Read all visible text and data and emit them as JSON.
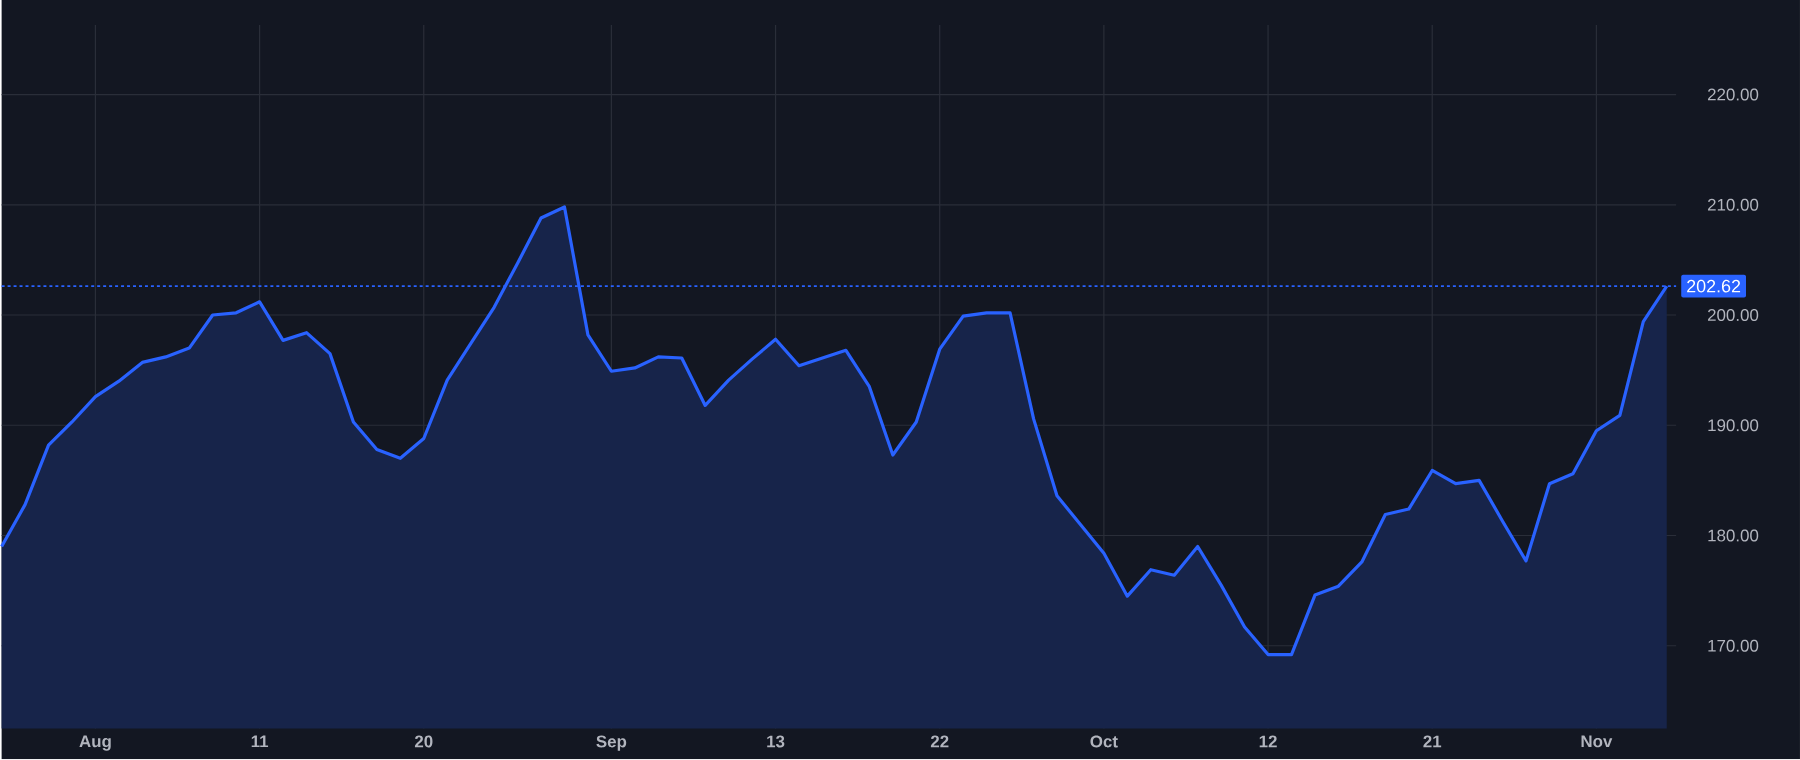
{
  "chart_data": {
    "type": "area",
    "categories": [
      null,
      null,
      null,
      null,
      "Aug",
      null,
      null,
      null,
      null,
      null,
      null,
      "11",
      null,
      null,
      null,
      null,
      null,
      null,
      "20",
      null,
      null,
      null,
      null,
      null,
      null,
      null,
      "Sep",
      null,
      null,
      null,
      null,
      null,
      null,
      "13",
      null,
      null,
      null,
      null,
      null,
      null,
      "22",
      null,
      null,
      null,
      null,
      null,
      null,
      "Oct",
      null,
      null,
      null,
      null,
      null,
      null,
      "12",
      null,
      null,
      null,
      null,
      null,
      null,
      "21",
      null,
      null,
      null,
      null,
      null,
      null,
      "Nov",
      null,
      null,
      null
    ],
    "series": [
      {
        "color": "#2962ff",
        "values": [
          179.0,
          182.8,
          188.2,
          190.3,
          192.6,
          194.0,
          195.7,
          196.2,
          197.0,
          200.0,
          200.2,
          201.2,
          197.7,
          198.4,
          196.5,
          190.3,
          187.8,
          187.0,
          188.8,
          194.1,
          197.4,
          200.7,
          204.7,
          208.8,
          209.8,
          198.2,
          194.9,
          195.2,
          196.2,
          196.1,
          191.8,
          194.1,
          196.0,
          197.8,
          195.4,
          196.1,
          196.8,
          193.5,
          187.3,
          190.3,
          196.9,
          199.9,
          200.2,
          200.2,
          190.6,
          183.6,
          181.0,
          178.4,
          174.5,
          176.9,
          176.4,
          179.0,
          175.5,
          171.7,
          169.2,
          169.2,
          174.6,
          175.4,
          177.6,
          181.9,
          182.4,
          185.9,
          184.7,
          185.0,
          181.3,
          177.7,
          184.7,
          185.6,
          189.5,
          190.9,
          199.4,
          202.62
        ]
      }
    ],
    "ylim": [
      162.5,
      226.3
    ],
    "yticks": [
      {
        "value": 170,
        "label": "170.00"
      },
      {
        "value": 180,
        "label": "180.00"
      },
      {
        "value": 190,
        "label": "190.00"
      },
      {
        "value": 200,
        "label": "200.00"
      },
      {
        "value": 210,
        "label": "210.00"
      },
      {
        "value": 220,
        "label": "220.00"
      }
    ],
    "ref_lines": [
      {
        "axis": "y",
        "value": 202.62,
        "label": "202.62",
        "color": "#2962ff",
        "line_style": "dotted"
      }
    ],
    "grid": true
  }
}
